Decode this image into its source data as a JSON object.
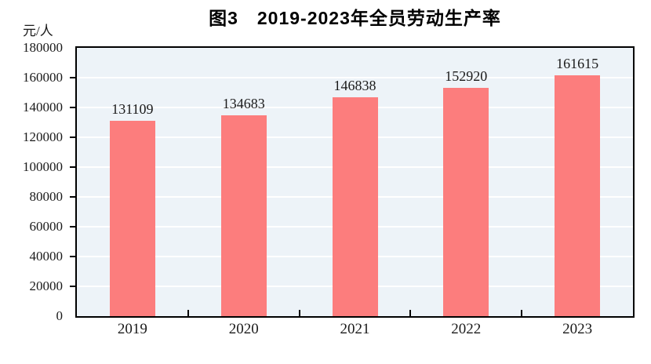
{
  "figure": {
    "title": "图3　2019-2023年全员劳动生产率",
    "y_axis_unit": "元/人"
  },
  "chart_data": {
    "type": "bar",
    "title": "图3　2019-2023年全员劳动生产率",
    "categories": [
      "2019",
      "2020",
      "2021",
      "2022",
      "2023"
    ],
    "values": [
      131109,
      134683,
      146838,
      152920,
      161615
    ],
    "bar_labels": [
      "131109",
      "134683",
      "146838",
      "152920",
      "161615"
    ],
    "xlabel": "",
    "ylabel": "元/人",
    "ylim": [
      0,
      180000
    ],
    "ytick_step": 20000,
    "ytick_labels": [
      "0",
      "20000",
      "40000",
      "60000",
      "80000",
      "100000",
      "120000",
      "140000",
      "160000",
      "180000"
    ],
    "grid": true,
    "legend": false,
    "colors": {
      "bar": "#fc7d7d",
      "plot_background": "#edf3f8",
      "gridline": "#ffffff",
      "axis": "#000000",
      "tick_text": "#1a1a1a",
      "title_text": "#000000",
      "page_background": "#ffffff"
    }
  }
}
